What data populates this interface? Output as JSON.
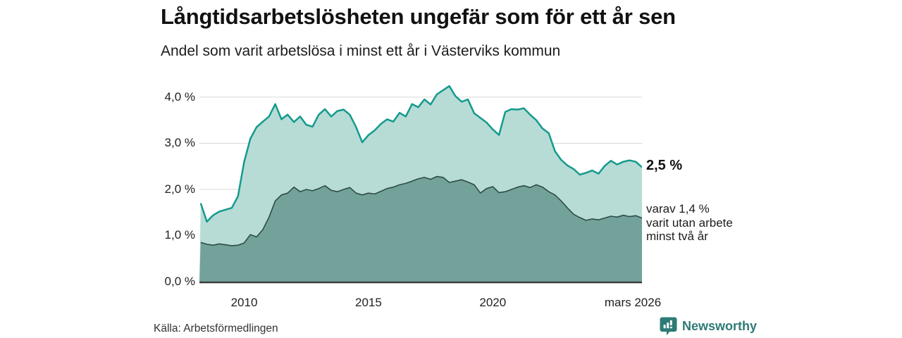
{
  "header": {
    "title": "Långtidsarbetslösheten ungefär som för ett år sen",
    "subtitle": "Andel som varit arbetslösa i minst ett år i Västerviks kommun"
  },
  "chart_data": {
    "type": "area",
    "title": "Långtidsarbetslösheten ungefär som för ett år sen",
    "subtitle": "Andel som varit arbetslösa i minst ett år i Västerviks kommun",
    "unit": "%",
    "x_start": 2008.25,
    "x_step": 0.25,
    "xlim": [
      2008.2,
      2026.0
    ],
    "ylim": [
      0,
      4.35
    ],
    "grid": true,
    "y_ticks": [
      {
        "label": "0,0 %",
        "value": 0
      },
      {
        "label": "1,0 %",
        "value": 1
      },
      {
        "label": "2,0 %",
        "value": 2
      },
      {
        "label": "3,0 %",
        "value": 3
      },
      {
        "label": "4,0 %",
        "value": 4
      }
    ],
    "x_ticks": [
      {
        "label": "2010",
        "value": 2010
      },
      {
        "label": "2015",
        "value": 2015
      },
      {
        "label": "2020",
        "value": 2020
      },
      {
        "label": "mars 2026",
        "value": 2026.0
      }
    ],
    "series": [
      {
        "name": "Andel som varit arbetslösa i minst ett år",
        "end_label": "2,5 %",
        "stroke": "#149a8d",
        "fill": "#b7dcd6",
        "stroke_width": 2.5,
        "values": [
          1.7,
          1.3,
          1.44,
          1.52,
          1.56,
          1.6,
          1.85,
          2.6,
          3.1,
          3.35,
          3.47,
          3.58,
          3.85,
          3.52,
          3.62,
          3.46,
          3.58,
          3.4,
          3.36,
          3.62,
          3.74,
          3.58,
          3.7,
          3.73,
          3.62,
          3.35,
          3.02,
          3.18,
          3.28,
          3.42,
          3.52,
          3.47,
          3.66,
          3.58,
          3.85,
          3.78,
          3.95,
          3.84,
          4.06,
          4.15,
          4.24,
          4.02,
          3.9,
          3.95,
          3.65,
          3.55,
          3.45,
          3.3,
          3.18,
          3.68,
          3.74,
          3.73,
          3.76,
          3.62,
          3.5,
          3.32,
          3.22,
          2.83,
          2.64,
          2.52,
          2.44,
          2.32,
          2.36,
          2.41,
          2.34,
          2.51,
          2.62,
          2.54,
          2.6,
          2.63,
          2.6,
          2.48
        ]
      },
      {
        "name": "varav utan arbete minst två år",
        "end_label": "varav 1,4 % varit utan arbete minst två år",
        "stroke": "#2e4c48",
        "fill": "#73a29b",
        "stroke_width": 1.6,
        "values": [
          0.85,
          0.81,
          0.79,
          0.82,
          0.8,
          0.78,
          0.79,
          0.84,
          1.02,
          0.97,
          1.13,
          1.4,
          1.75,
          1.88,
          1.92,
          2.05,
          1.95,
          2.0,
          1.97,
          2.02,
          2.08,
          1.98,
          1.95,
          2.0,
          2.04,
          1.92,
          1.88,
          1.92,
          1.9,
          1.96,
          2.02,
          2.05,
          2.1,
          2.13,
          2.18,
          2.23,
          2.26,
          2.22,
          2.28,
          2.26,
          2.15,
          2.18,
          2.21,
          2.16,
          2.1,
          1.92,
          2.02,
          2.06,
          1.93,
          1.95,
          2.0,
          2.05,
          2.08,
          2.04,
          2.1,
          2.05,
          1.95,
          1.88,
          1.75,
          1.6,
          1.46,
          1.39,
          1.33,
          1.36,
          1.34,
          1.38,
          1.42,
          1.4,
          1.44,
          1.41,
          1.43,
          1.38
        ]
      }
    ],
    "legend_position": "end-of-line annotations"
  },
  "annotations": {
    "end_total": "2,5 %",
    "end_two_years_l1": "varav 1,4 %",
    "end_two_years_l2": "varit utan arbete",
    "end_two_years_l3": "minst två år"
  },
  "footer": {
    "source": "Källa: Arbetsförmedlingen",
    "brand": "Newsworthy"
  },
  "colors": {
    "total_stroke": "#149a8d",
    "total_fill": "#b7dcd6",
    "two_year_stroke": "#2e4c48",
    "two_year_fill": "#73a29b",
    "gridline": "#d9d9d9",
    "baseline": "#3c3c3c",
    "brand_teal": "#2e7b75",
    "text_dark": "#111111"
  }
}
